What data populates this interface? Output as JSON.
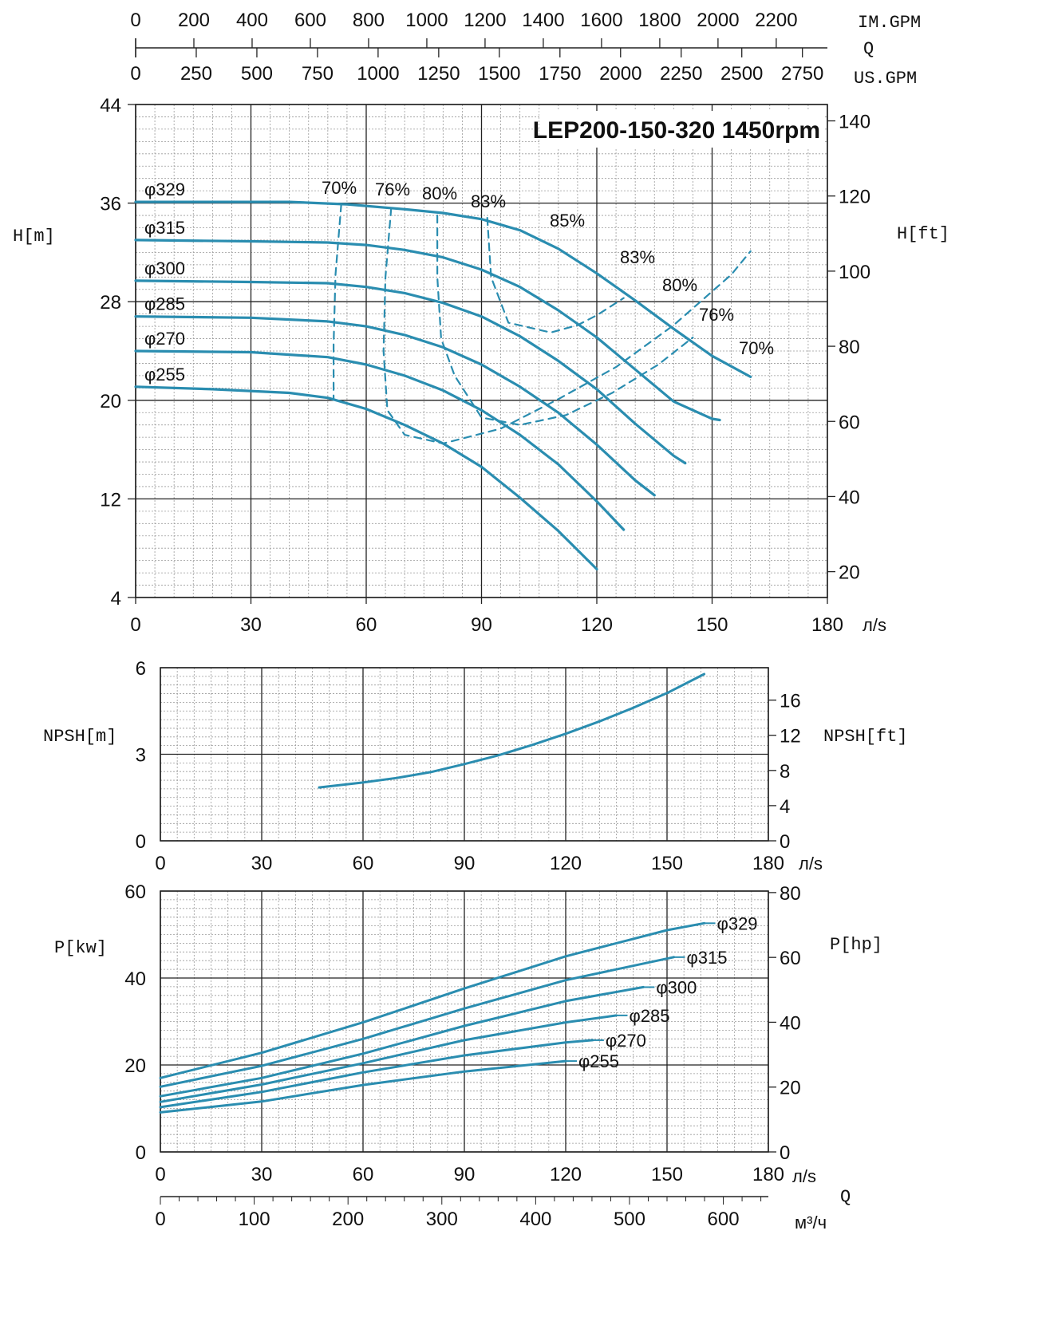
{
  "colors": {
    "curve": "#2a8db0",
    "grid_major": "#222222",
    "grid_minor": "#9a9a9a",
    "text": "#111111"
  },
  "units": {
    "im_gpm": "IM.GPM",
    "q": "Q",
    "us_gpm": "US.GPM",
    "h_m": "H[m]",
    "h_ft": "H[ft]",
    "ls": "л/s",
    "npsh_m": "NPSH[m]",
    "npsh_ft": "NPSH[ft]",
    "p_kw": "P[kw]",
    "p_hp": "P[hp]",
    "m3h": "м³/ч"
  },
  "chart_data": [
    {
      "type": "line",
      "title": "LEP200-150-320 1450rpm",
      "xlabel": "л/s",
      "ylabel": "H[m]",
      "ylabel_right": "H[ft]",
      "xlim": [
        0,
        180
      ],
      "ylim": [
        4,
        44
      ],
      "x_ticks": [
        0,
        30,
        60,
        90,
        120,
        150,
        180
      ],
      "y_ticks": [
        4,
        12,
        20,
        28,
        36,
        44
      ],
      "y2_ticks": [
        20,
        40,
        60,
        80,
        100,
        120,
        140
      ],
      "top_axis_im_gpm_ticks": [
        0,
        200,
        400,
        600,
        800,
        1000,
        1200,
        1400,
        1600,
        1800,
        2000,
        2200
      ],
      "top_axis_us_gpm_ticks": [
        0,
        250,
        500,
        750,
        1000,
        1250,
        1500,
        1750,
        2000,
        2250,
        2500,
        2750
      ],
      "grid": true,
      "series": [
        {
          "name": "φ329",
          "x": [
            0,
            20,
            40,
            55,
            70,
            80,
            90,
            100,
            110,
            120,
            130,
            140,
            150,
            160
          ],
          "y": [
            36.1,
            36.1,
            36.1,
            35.9,
            35.5,
            35.2,
            34.7,
            33.8,
            32.3,
            30.3,
            28.1,
            25.8,
            23.6,
            21.9
          ]
        },
        {
          "name": "φ315",
          "x": [
            0,
            30,
            50,
            60,
            70,
            80,
            90,
            100,
            110,
            120,
            130,
            140,
            150,
            152
          ],
          "y": [
            33.0,
            32.9,
            32.8,
            32.6,
            32.2,
            31.6,
            30.6,
            29.2,
            27.3,
            25.1,
            22.5,
            19.9,
            18.5,
            18.4
          ]
        },
        {
          "name": "φ300",
          "x": [
            0,
            30,
            50,
            60,
            70,
            80,
            90,
            100,
            110,
            120,
            130,
            140,
            143
          ],
          "y": [
            29.7,
            29.6,
            29.5,
            29.2,
            28.7,
            27.9,
            26.8,
            25.2,
            23.2,
            20.9,
            18.1,
            15.5,
            14.9
          ]
        },
        {
          "name": "φ285",
          "x": [
            0,
            30,
            50,
            60,
            70,
            80,
            90,
            100,
            110,
            120,
            130,
            135
          ],
          "y": [
            26.8,
            26.7,
            26.4,
            26.0,
            25.3,
            24.3,
            22.9,
            21.1,
            19.0,
            16.4,
            13.5,
            12.3
          ]
        },
        {
          "name": "φ270",
          "x": [
            0,
            30,
            50,
            60,
            70,
            80,
            90,
            100,
            110,
            120,
            127
          ],
          "y": [
            24.0,
            23.9,
            23.5,
            22.9,
            22.0,
            20.8,
            19.2,
            17.2,
            14.8,
            11.8,
            9.5
          ]
        },
        {
          "name": "φ255",
          "x": [
            0,
            20,
            40,
            50,
            60,
            70,
            80,
            90,
            100,
            110,
            120
          ],
          "y": [
            21.1,
            20.9,
            20.6,
            20.2,
            19.3,
            18.0,
            16.5,
            14.6,
            12.1,
            9.4,
            6.3
          ]
        }
      ],
      "efficiency_curves": [
        {
          "label": "70%",
          "x": [
            53.5,
            52,
            51.5,
            51.5
          ],
          "y": [
            35.9,
            30.2,
            24.5,
            20.1
          ]
        },
        {
          "label": "76%",
          "x": [
            66.5,
            65,
            64.5,
            65.5,
            70,
            80,
            95,
            110,
            125,
            140,
            155,
            160
          ],
          "y": [
            35.6,
            30,
            24,
            19.2,
            17.2,
            16.5,
            17.7,
            20.1,
            22.7,
            26.1,
            30.2,
            32.1
          ]
        },
        {
          "label": "80%",
          "x": [
            78.5,
            78.5,
            79.5,
            83,
            90,
            100,
            112,
            124,
            136,
            145
          ],
          "y": [
            35.0,
            30,
            25,
            22,
            18.6,
            18,
            18.8,
            20.6,
            22.9,
            25.1
          ]
        },
        {
          "label": "83%",
          "x": [
            91.5,
            92.5,
            97,
            108,
            115,
            120,
            127
          ],
          "y": [
            34.8,
            30,
            26.3,
            25.5,
            26.1,
            26.9,
            28.3
          ]
        },
        {
          "label": "85%",
          "x": [],
          "y": []
        },
        {
          "label": "83%",
          "x": [],
          "y": []
        },
        {
          "label": "80%",
          "x": [],
          "y": []
        },
        {
          "label": "76%",
          "x": [],
          "y": []
        },
        {
          "label": "70%",
          "x": [],
          "y": []
        }
      ]
    },
    {
      "type": "line",
      "xlabel": "л/s",
      "ylabel": "NPSH[m]",
      "ylabel_right": "NPSH[ft]",
      "xlim": [
        0,
        180
      ],
      "ylim": [
        0,
        6
      ],
      "x_ticks": [
        0,
        30,
        60,
        90,
        120,
        150,
        180
      ],
      "y_ticks": [
        0,
        3,
        6
      ],
      "y2_ticks": [
        0,
        4,
        8,
        12,
        16
      ],
      "grid": true,
      "series": [
        {
          "x": [
            47,
            60,
            70,
            80,
            90,
            100,
            110,
            120,
            130,
            140,
            150,
            161
          ],
          "y": [
            1.85,
            2.02,
            2.18,
            2.38,
            2.66,
            2.96,
            3.32,
            3.71,
            4.14,
            4.61,
            5.12,
            5.78
          ]
        }
      ]
    },
    {
      "type": "line",
      "xlabel": "л/s",
      "ylabel": "P[kw]",
      "ylabel_right": "P[hp]",
      "xlim": [
        0,
        180
      ],
      "ylim": [
        0,
        60
      ],
      "x_ticks": [
        0,
        30,
        60,
        90,
        120,
        150,
        180
      ],
      "y_ticks": [
        0,
        20,
        40,
        60
      ],
      "y2_ticks": [
        0,
        20,
        40,
        60,
        80
      ],
      "bottom_axis_m3h_ticks": [
        0,
        100,
        200,
        300,
        400,
        500,
        600
      ],
      "bottom_axis_label": "Q",
      "grid": true,
      "series": [
        {
          "name": "φ329",
          "x": [
            0,
            30,
            60,
            90,
            120,
            150,
            161
          ],
          "y": [
            17,
            22.8,
            29.8,
            37.6,
            45,
            51,
            52.6
          ]
        },
        {
          "name": "φ315",
          "x": [
            0,
            30,
            60,
            90,
            120,
            152
          ],
          "y": [
            15,
            19.8,
            26,
            33,
            39.5,
            44.8
          ]
        },
        {
          "name": "φ300",
          "x": [
            0,
            30,
            60,
            90,
            120,
            143
          ],
          "y": [
            12.8,
            17,
            22.6,
            29,
            34.7,
            37.9
          ]
        },
        {
          "name": "φ285",
          "x": [
            0,
            30,
            60,
            90,
            120,
            135
          ],
          "y": [
            11.5,
            15.5,
            20.4,
            25.7,
            29.8,
            31.4
          ]
        },
        {
          "name": "φ270",
          "x": [
            0,
            30,
            60,
            90,
            120,
            128
          ],
          "y": [
            10.3,
            13.8,
            18.3,
            22.2,
            25.2,
            25.7
          ]
        },
        {
          "name": "φ255",
          "x": [
            0,
            30,
            60,
            90,
            120
          ],
          "y": [
            9.1,
            11.6,
            15.4,
            18.5,
            20.9
          ]
        }
      ]
    }
  ]
}
